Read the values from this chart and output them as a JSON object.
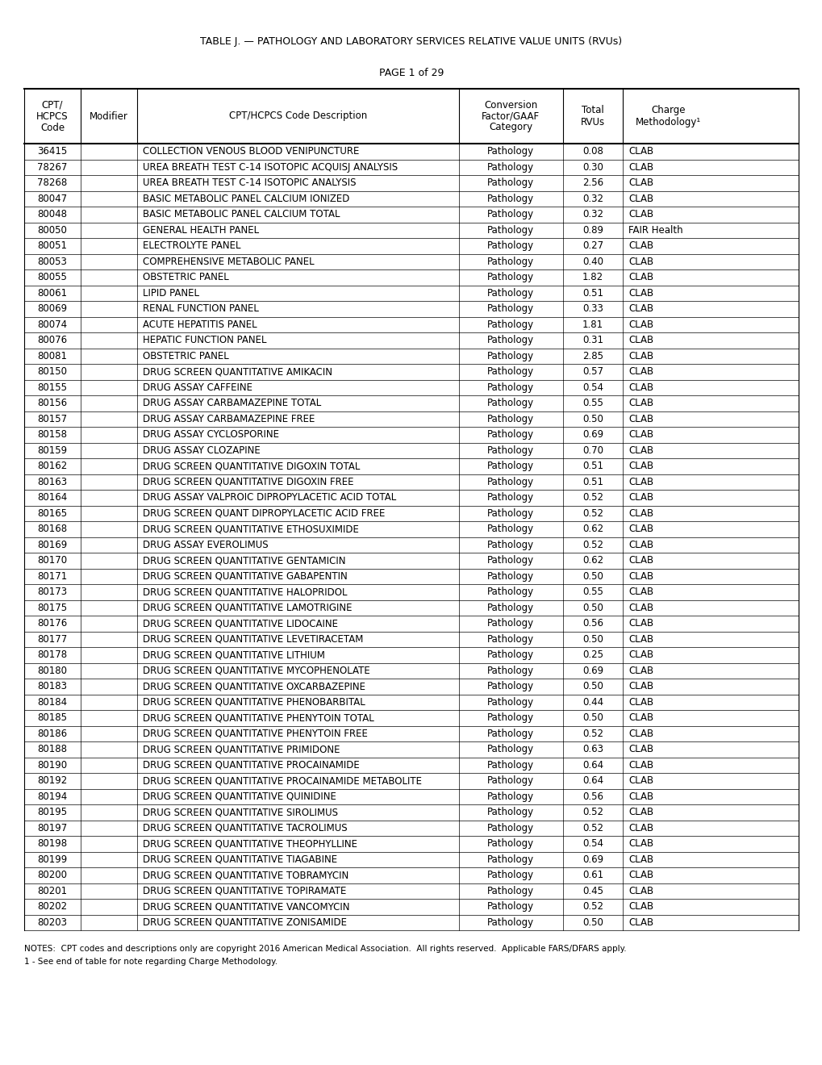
{
  "title": "TABLE J. — PATHOLOGY AND LABORATORY SERVICES RELATIVE VALUE UNITS (RVUs)",
  "page": "PAGE 1 of 29",
  "col_headers": [
    [
      "CPT/",
      "HCPCS",
      "Code"
    ],
    [
      "Modifier"
    ],
    [
      "CPT/HCPCS Code Description"
    ],
    [
      "Conversion",
      "Factor/GAAF",
      "Category"
    ],
    [
      "Total",
      "RVUs"
    ],
    [
      "Charge",
      "Methodology¹"
    ]
  ],
  "rows": [
    [
      "36415",
      "",
      "COLLECTION VENOUS BLOOD VENIPUNCTURE",
      "Pathology",
      "0.08",
      "CLAB"
    ],
    [
      "78267",
      "",
      "UREA BREATH TEST C-14 ISOTOPIC ACQUISJ ANALYSIS",
      "Pathology",
      "0.30",
      "CLAB"
    ],
    [
      "78268",
      "",
      "UREA BREATH TEST C-14 ISOTOPIC ANALYSIS",
      "Pathology",
      "2.56",
      "CLAB"
    ],
    [
      "80047",
      "",
      "BASIC METABOLIC PANEL CALCIUM IONIZED",
      "Pathology",
      "0.32",
      "CLAB"
    ],
    [
      "80048",
      "",
      "BASIC METABOLIC PANEL CALCIUM TOTAL",
      "Pathology",
      "0.32",
      "CLAB"
    ],
    [
      "80050",
      "",
      "GENERAL HEALTH PANEL",
      "Pathology",
      "0.89",
      "FAIR Health"
    ],
    [
      "80051",
      "",
      "ELECTROLYTE PANEL",
      "Pathology",
      "0.27",
      "CLAB"
    ],
    [
      "80053",
      "",
      "COMPREHENSIVE METABOLIC PANEL",
      "Pathology",
      "0.40",
      "CLAB"
    ],
    [
      "80055",
      "",
      "OBSTETRIC PANEL",
      "Pathology",
      "1.82",
      "CLAB"
    ],
    [
      "80061",
      "",
      "LIPID PANEL",
      "Pathology",
      "0.51",
      "CLAB"
    ],
    [
      "80069",
      "",
      "RENAL FUNCTION PANEL",
      "Pathology",
      "0.33",
      "CLAB"
    ],
    [
      "80074",
      "",
      "ACUTE HEPATITIS PANEL",
      "Pathology",
      "1.81",
      "CLAB"
    ],
    [
      "80076",
      "",
      "HEPATIC FUNCTION PANEL",
      "Pathology",
      "0.31",
      "CLAB"
    ],
    [
      "80081",
      "",
      "OBSTETRIC PANEL",
      "Pathology",
      "2.85",
      "CLAB"
    ],
    [
      "80150",
      "",
      "DRUG SCREEN QUANTITATIVE AMIKACIN",
      "Pathology",
      "0.57",
      "CLAB"
    ],
    [
      "80155",
      "",
      "DRUG ASSAY CAFFEINE",
      "Pathology",
      "0.54",
      "CLAB"
    ],
    [
      "80156",
      "",
      "DRUG ASSAY CARBAMAZEPINE TOTAL",
      "Pathology",
      "0.55",
      "CLAB"
    ],
    [
      "80157",
      "",
      "DRUG ASSAY CARBAMAZEPINE FREE",
      "Pathology",
      "0.50",
      "CLAB"
    ],
    [
      "80158",
      "",
      "DRUG ASSAY CYCLOSPORINE",
      "Pathology",
      "0.69",
      "CLAB"
    ],
    [
      "80159",
      "",
      "DRUG ASSAY CLOZAPINE",
      "Pathology",
      "0.70",
      "CLAB"
    ],
    [
      "80162",
      "",
      "DRUG SCREEN QUANTITATIVE DIGOXIN TOTAL",
      "Pathology",
      "0.51",
      "CLAB"
    ],
    [
      "80163",
      "",
      "DRUG SCREEN QUANTITATIVE DIGOXIN FREE",
      "Pathology",
      "0.51",
      "CLAB"
    ],
    [
      "80164",
      "",
      "DRUG ASSAY VALPROIC DIPROPYLACETIC ACID TOTAL",
      "Pathology",
      "0.52",
      "CLAB"
    ],
    [
      "80165",
      "",
      "DRUG SCREEN QUANT DIPROPYLACETIC ACID FREE",
      "Pathology",
      "0.52",
      "CLAB"
    ],
    [
      "80168",
      "",
      "DRUG SCREEN QUANTITATIVE ETHOSUXIMIDE",
      "Pathology",
      "0.62",
      "CLAB"
    ],
    [
      "80169",
      "",
      "DRUG ASSAY EVEROLIMUS",
      "Pathology",
      "0.52",
      "CLAB"
    ],
    [
      "80170",
      "",
      "DRUG SCREEN QUANTITATIVE GENTAMICIN",
      "Pathology",
      "0.62",
      "CLAB"
    ],
    [
      "80171",
      "",
      "DRUG SCREEN QUANTITATIVE GABAPENTIN",
      "Pathology",
      "0.50",
      "CLAB"
    ],
    [
      "80173",
      "",
      "DRUG SCREEN QUANTITATIVE HALOPRIDOL",
      "Pathology",
      "0.55",
      "CLAB"
    ],
    [
      "80175",
      "",
      "DRUG SCREEN QUANTITATIVE LAMOTRIGINE",
      "Pathology",
      "0.50",
      "CLAB"
    ],
    [
      "80176",
      "",
      "DRUG SCREEN QUANTITATIVE LIDOCAINE",
      "Pathology",
      "0.56",
      "CLAB"
    ],
    [
      "80177",
      "",
      "DRUG SCREEN QUANTITATIVE LEVETIRACETAM",
      "Pathology",
      "0.50",
      "CLAB"
    ],
    [
      "80178",
      "",
      "DRUG SCREEN QUANTITATIVE LITHIUM",
      "Pathology",
      "0.25",
      "CLAB"
    ],
    [
      "80180",
      "",
      "DRUG SCREEN QUANTITATIVE MYCOPHENOLATE",
      "Pathology",
      "0.69",
      "CLAB"
    ],
    [
      "80183",
      "",
      "DRUG SCREEN QUANTITATIVE OXCARBAZEPINE",
      "Pathology",
      "0.50",
      "CLAB"
    ],
    [
      "80184",
      "",
      "DRUG SCREEN QUANTITATIVE PHENOBARBITAL",
      "Pathology",
      "0.44",
      "CLAB"
    ],
    [
      "80185",
      "",
      "DRUG SCREEN QUANTITATIVE PHENYTOIN TOTAL",
      "Pathology",
      "0.50",
      "CLAB"
    ],
    [
      "80186",
      "",
      "DRUG SCREEN QUANTITATIVE PHENYTOIN FREE",
      "Pathology",
      "0.52",
      "CLAB"
    ],
    [
      "80188",
      "",
      "DRUG SCREEN QUANTITATIVE PRIMIDONE",
      "Pathology",
      "0.63",
      "CLAB"
    ],
    [
      "80190",
      "",
      "DRUG SCREEN QUANTITATIVE PROCAINAMIDE",
      "Pathology",
      "0.64",
      "CLAB"
    ],
    [
      "80192",
      "",
      "DRUG SCREEN QUANTITATIVE PROCAINAMIDE METABOLITE",
      "Pathology",
      "0.64",
      "CLAB"
    ],
    [
      "80194",
      "",
      "DRUG SCREEN QUANTITATIVE QUINIDINE",
      "Pathology",
      "0.56",
      "CLAB"
    ],
    [
      "80195",
      "",
      "DRUG SCREEN QUANTITATIVE SIROLIMUS",
      "Pathology",
      "0.52",
      "CLAB"
    ],
    [
      "80197",
      "",
      "DRUG SCREEN QUANTITATIVE TACROLIMUS",
      "Pathology",
      "0.52",
      "CLAB"
    ],
    [
      "80198",
      "",
      "DRUG SCREEN QUANTITATIVE THEOPHYLLINE",
      "Pathology",
      "0.54",
      "CLAB"
    ],
    [
      "80199",
      "",
      "DRUG SCREEN QUANTITATIVE TIAGABINE",
      "Pathology",
      "0.69",
      "CLAB"
    ],
    [
      "80200",
      "",
      "DRUG SCREEN QUANTITATIVE TOBRAMYCIN",
      "Pathology",
      "0.61",
      "CLAB"
    ],
    [
      "80201",
      "",
      "DRUG SCREEN QUANTITATIVE TOPIRAMATE",
      "Pathology",
      "0.45",
      "CLAB"
    ],
    [
      "80202",
      "",
      "DRUG SCREEN QUANTITATIVE VANCOMYCIN",
      "Pathology",
      "0.52",
      "CLAB"
    ],
    [
      "80203",
      "",
      "DRUG SCREEN QUANTITATIVE ZONISAMIDE",
      "Pathology",
      "0.50",
      "CLAB"
    ]
  ],
  "notes": [
    "NOTES:  CPT codes and descriptions only are copyright 2016 American Medical Association.  All rights reserved.  Applicable FARS/DFARS apply.",
    "1 - See end of table for note regarding Charge Methodology."
  ],
  "bg_color": "#ffffff",
  "text_color": "#000000"
}
